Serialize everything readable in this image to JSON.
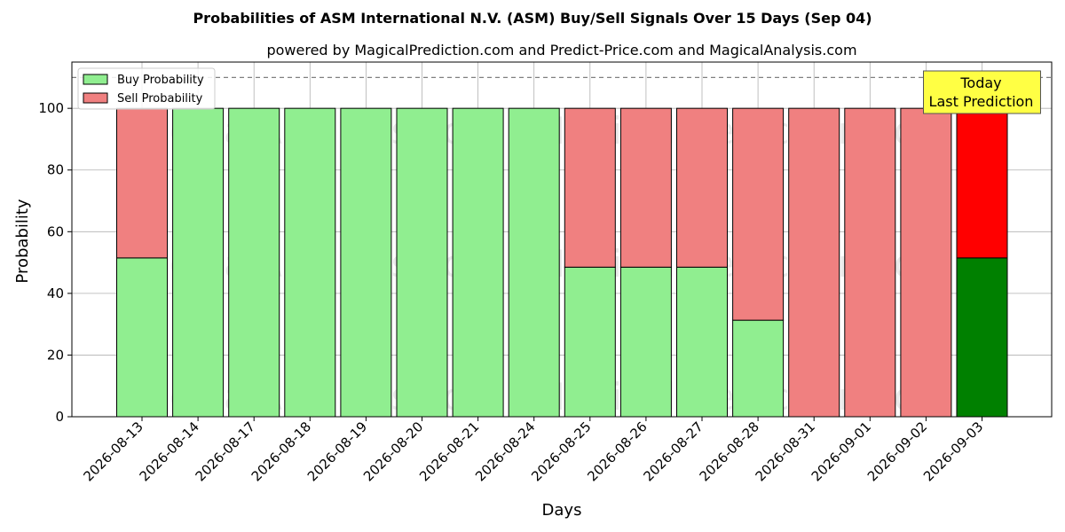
{
  "chart_data": {
    "type": "bar",
    "stacked": true,
    "title": "Probabilities of ASM International N.V. (ASM) Buy/Sell Signals Over 15 Days (Sep 04)",
    "subtitle": "powered by MagicalPrediction.com and Predict-Price.com and MagicalAnalysis.com",
    "xlabel": "Days",
    "ylabel": "Probability",
    "ylim": [
      0,
      115
    ],
    "yticks": [
      0,
      20,
      40,
      60,
      80,
      100
    ],
    "grid": true,
    "legend_position": "top-left",
    "categories": [
      "2026-08-13",
      "2026-08-14",
      "2026-08-17",
      "2026-08-18",
      "2026-08-19",
      "2026-08-20",
      "2026-08-21",
      "2026-08-24",
      "2026-08-25",
      "2026-08-26",
      "2026-08-27",
      "2026-08-28",
      "2026-08-31",
      "2026-09-01",
      "2026-09-02",
      "2026-09-03"
    ],
    "series": [
      {
        "name": "Buy Probability",
        "color": "#90ee90",
        "last_color": "#008000",
        "values": [
          51.5,
          100,
          100,
          100,
          100,
          100,
          100,
          100,
          48.5,
          48.5,
          48.5,
          31.3,
          0,
          0,
          0,
          51.5
        ]
      },
      {
        "name": "Sell Probability",
        "color": "#f08080",
        "last_color": "#ff0000",
        "values": [
          48.5,
          0,
          0,
          0,
          0,
          0,
          0,
          0,
          51.5,
          51.5,
          51.5,
          68.7,
          100,
          100,
          100,
          48.5
        ]
      }
    ],
    "reference_line": {
      "y": 110,
      "style": "dashed"
    },
    "annotation": {
      "lines": [
        "Today",
        "Last Prediction"
      ],
      "background": "#ffff44"
    },
    "watermarks": [
      "MagicalAnalysis.com",
      "MagicalPrediction.com"
    ]
  }
}
